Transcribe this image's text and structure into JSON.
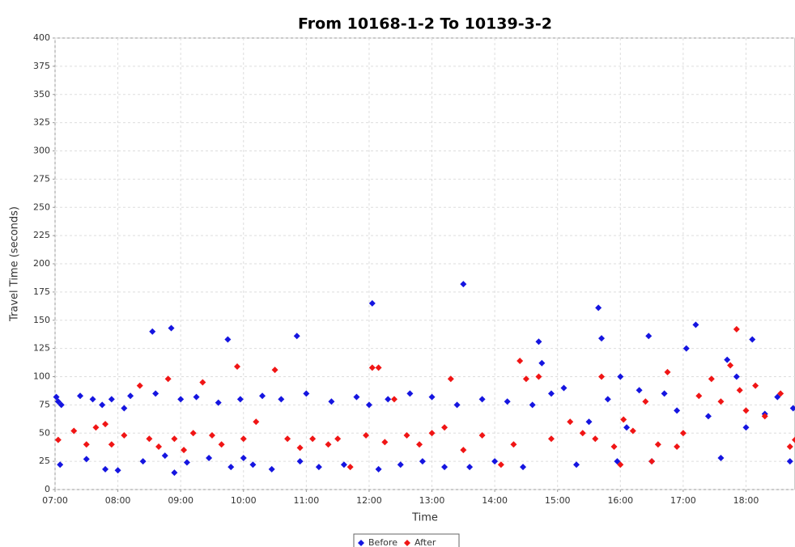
{
  "chart_data": {
    "type": "scatter",
    "title": "From 10168-1-2 To 10139-3-2",
    "x_label": "Time",
    "y_label": "Travel Time (seconds)",
    "xlim": [
      7,
      18.78
    ],
    "ylim": [
      0,
      400
    ],
    "xticks": [
      {
        "value": 7,
        "label": "07:00"
      },
      {
        "value": 8,
        "label": "08:00"
      },
      {
        "value": 9,
        "label": "09:00"
      },
      {
        "value": 10,
        "label": "10:00"
      },
      {
        "value": 11,
        "label": "11:00"
      },
      {
        "value": 12,
        "label": "12:00"
      },
      {
        "value": 13,
        "label": "13:00"
      },
      {
        "value": 14,
        "label": "14:00"
      },
      {
        "value": 15,
        "label": "15:00"
      },
      {
        "value": 16,
        "label": "16:00"
      },
      {
        "value": 17,
        "label": "17:00"
      },
      {
        "value": 18,
        "label": "18:00"
      }
    ],
    "yticks": [
      0,
      25,
      50,
      75,
      100,
      125,
      150,
      175,
      200,
      225,
      250,
      275,
      300,
      325,
      350,
      375,
      400
    ],
    "grid": true,
    "legend": "bottom",
    "series": [
      {
        "name": "Before",
        "color": "#1515e0",
        "x": [
          7.02,
          7.05,
          7.08,
          7.1,
          7.4,
          7.5,
          7.6,
          7.75,
          7.8,
          7.9,
          8.0,
          8.1,
          8.2,
          8.4,
          8.55,
          8.6,
          8.75,
          8.85,
          8.9,
          9.0,
          9.1,
          9.25,
          9.45,
          9.6,
          9.75,
          9.8,
          9.95,
          10.0,
          10.15,
          10.3,
          10.45,
          10.6,
          10.85,
          10.9,
          11.0,
          11.2,
          11.4,
          11.6,
          11.8,
          12.0,
          12.05,
          12.15,
          12.3,
          12.5,
          12.65,
          12.85,
          13.0,
          13.2,
          13.4,
          13.5,
          13.6,
          13.8,
          14.0,
          14.2,
          14.45,
          14.6,
          14.7,
          14.75,
          14.9,
          15.1,
          15.3,
          15.5,
          15.65,
          15.7,
          15.8,
          15.95,
          16.0,
          16.1,
          16.3,
          16.45,
          16.5,
          16.7,
          16.9,
          17.05,
          17.2,
          17.4,
          17.6,
          17.7,
          17.85,
          18.0,
          18.1,
          18.3,
          18.5,
          18.7,
          18.75
        ],
        "values": [
          82,
          78,
          22,
          75,
          83,
          27,
          80,
          75,
          18,
          80,
          17,
          72,
          83,
          25,
          140,
          85,
          30,
          143,
          15,
          80,
          24,
          82,
          28,
          77,
          133,
          20,
          80,
          28,
          22,
          83,
          18,
          80,
          136,
          25,
          85,
          20,
          78,
          22,
          82,
          75,
          165,
          18,
          80,
          22,
          85,
          25,
          82,
          20,
          75,
          182,
          20,
          80,
          25,
          78,
          20,
          75,
          131,
          112,
          85,
          90,
          22,
          60,
          161,
          134,
          80,
          25,
          100,
          55,
          88,
          136,
          25,
          85,
          70,
          125,
          146,
          65,
          28,
          115,
          100,
          55,
          133,
          67,
          82,
          25,
          72
        ]
      },
      {
        "name": "After",
        "color": "#f01515",
        "x": [
          7.05,
          7.3,
          7.5,
          7.65,
          7.8,
          7.9,
          8.1,
          8.35,
          8.5,
          8.65,
          8.8,
          8.9,
          9.05,
          9.2,
          9.35,
          9.5,
          9.65,
          9.9,
          10.0,
          10.2,
          10.5,
          10.7,
          10.9,
          11.1,
          11.35,
          11.5,
          11.7,
          11.95,
          12.05,
          12.15,
          12.25,
          12.4,
          12.6,
          12.8,
          13.0,
          13.2,
          13.3,
          13.5,
          13.8,
          14.1,
          14.3,
          14.4,
          14.5,
          14.7,
          14.9,
          15.2,
          15.4,
          15.6,
          15.7,
          15.9,
          16.0,
          16.05,
          16.2,
          16.4,
          16.5,
          16.6,
          16.75,
          16.9,
          17.0,
          17.25,
          17.45,
          17.6,
          17.75,
          17.85,
          17.9,
          18.0,
          18.15,
          18.3,
          18.55,
          18.7,
          18.78
        ],
        "values": [
          44,
          52,
          40,
          55,
          58,
          40,
          48,
          92,
          45,
          38,
          98,
          45,
          35,
          50,
          95,
          48,
          40,
          109,
          45,
          60,
          106,
          45,
          37,
          45,
          40,
          45,
          20,
          48,
          108,
          108,
          42,
          80,
          48,
          40,
          50,
          55,
          98,
          35,
          48,
          22,
          40,
          114,
          98,
          100,
          45,
          60,
          50,
          45,
          100,
          38,
          22,
          62,
          52,
          78,
          25,
          40,
          104,
          38,
          50,
          83,
          98,
          78,
          110,
          142,
          88,
          70,
          92,
          65,
          85,
          38,
          44
        ]
      }
    ]
  }
}
